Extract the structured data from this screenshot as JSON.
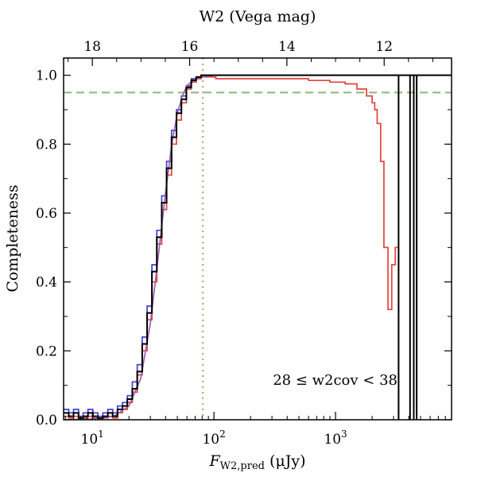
{
  "chart_data": {
    "type": "line",
    "drawstyle": "steps",
    "title": "",
    "xlabel": "F_{W2,pred} (μJy)",
    "xlabel_parts": {
      "main": "F",
      "sub": "W2,pred",
      "unit": " (μJy)"
    },
    "ylabel": "Completeness",
    "top_xlabel": "W2 (Vega mag)",
    "xscale": "log",
    "xlim": [
      5.8,
      9000
    ],
    "ylim": [
      0,
      1.05
    ],
    "x_ticks": [
      {
        "value": 10,
        "base": "10",
        "exp": "1"
      },
      {
        "value": 100,
        "base": "10",
        "exp": "2"
      },
      {
        "value": 1000,
        "base": "10",
        "exp": "3"
      }
    ],
    "y_ticks": [
      0.0,
      0.2,
      0.4,
      0.6,
      0.8,
      1.0
    ],
    "y_tick_labels": [
      "0.0",
      "0.2",
      "0.4",
      "0.6",
      "0.8",
      "1.0"
    ],
    "top_ticks": [
      {
        "mag": 18,
        "flux": 10.0,
        "label": "18"
      },
      {
        "mag": 16,
        "flux": 63.1,
        "label": "16"
      },
      {
        "mag": 14,
        "flux": 398.0,
        "label": "14"
      },
      {
        "mag": 12,
        "flux": 2512.0,
        "label": "12"
      }
    ],
    "annotation": "28 ≤ w2cov < 38",
    "reference_lines": [
      {
        "orientation": "horizontal",
        "y": 0.95,
        "color": "#8cb878",
        "style": "dashed"
      },
      {
        "orientation": "vertical",
        "x": 81,
        "color": "#bfae8c",
        "style": "dotted"
      }
    ],
    "series": [
      {
        "color": "#3f3fd8",
        "x": [
          5.8,
          6.4,
          7.0,
          7.7,
          8.4,
          9.2,
          10.1,
          11.1,
          12.2,
          13.4,
          14.7,
          16.1,
          17.7,
          19.4,
          21.3,
          23.4,
          25.7,
          28.2,
          30.9,
          33.9,
          37.2,
          40.8,
          44.8,
          49.2,
          54.0,
          59.3,
          65.1,
          71.4,
          78.4,
          86.0,
          94.4,
          103.6,
          150,
          300,
          600,
          1000,
          2000,
          3300
        ],
        "y": [
          0.03,
          0.02,
          0.03,
          0.01,
          0.02,
          0.03,
          0.02,
          0.01,
          0.02,
          0.03,
          0.02,
          0.04,
          0.05,
          0.07,
          0.11,
          0.16,
          0.24,
          0.33,
          0.45,
          0.55,
          0.65,
          0.75,
          0.84,
          0.9,
          0.94,
          0.97,
          0.99,
          0.995,
          1.0,
          1.0,
          1.0,
          1.0,
          1.0,
          1.0,
          1.0,
          1.0,
          1.0,
          1.0
        ]
      },
      {
        "color": "#e0443c",
        "x": [
          5.8,
          6.4,
          7.0,
          7.7,
          8.4,
          9.2,
          10.1,
          11.1,
          12.2,
          13.4,
          14.7,
          16.1,
          17.7,
          19.4,
          21.3,
          23.4,
          25.7,
          28.2,
          30.9,
          33.9,
          37.2,
          40.8,
          44.8,
          49.2,
          54.0,
          59.3,
          65.1,
          71.4,
          78.4,
          86.0,
          94.4,
          103.6,
          150,
          300,
          600,
          900,
          1200,
          1500,
          1800,
          2000,
          2100,
          2200,
          2350,
          2500,
          2700,
          2900,
          3100,
          3300
        ],
        "y": [
          0.01,
          0.005,
          0.01,
          0.0,
          0.005,
          0.01,
          0.005,
          0.0,
          0.005,
          0.01,
          0.005,
          0.02,
          0.03,
          0.05,
          0.08,
          0.13,
          0.2,
          0.29,
          0.4,
          0.51,
          0.61,
          0.71,
          0.8,
          0.87,
          0.92,
          0.96,
          0.98,
          0.99,
          0.995,
          0.995,
          0.995,
          0.99,
          0.99,
          0.99,
          0.985,
          0.98,
          0.975,
          0.96,
          0.94,
          0.92,
          0.9,
          0.86,
          0.75,
          0.5,
          0.32,
          0.45,
          0.5,
          0.0
        ]
      },
      {
        "color": "#9b5fb0",
        "x": [
          5.8,
          10,
          15,
          20,
          25,
          30,
          35,
          40,
          45,
          50,
          55,
          60,
          70,
          80,
          100,
          150,
          300,
          1000,
          3000,
          9000
        ],
        "y": [
          0.0,
          0.002,
          0.01,
          0.04,
          0.12,
          0.28,
          0.48,
          0.66,
          0.8,
          0.89,
          0.94,
          0.97,
          0.99,
          0.995,
          1.0,
          1.0,
          1.0,
          1.0,
          1.0,
          1.0
        ]
      },
      {
        "color": "#000000",
        "x": [
          5.8,
          6.4,
          7.0,
          7.7,
          8.4,
          9.2,
          10.1,
          11.1,
          12.2,
          13.4,
          14.7,
          16.1,
          17.7,
          19.4,
          21.3,
          23.4,
          25.7,
          28.2,
          30.9,
          33.9,
          37.2,
          40.8,
          44.8,
          49.2,
          54.0,
          59.3,
          65.1,
          71.4,
          78.4,
          86.0,
          94.4,
          103.6,
          150,
          300,
          600,
          1000,
          2000,
          3300
        ],
        "y": [
          0.02,
          0.01,
          0.02,
          0.005,
          0.01,
          0.02,
          0.01,
          0.005,
          0.01,
          0.02,
          0.01,
          0.03,
          0.04,
          0.06,
          0.09,
          0.14,
          0.22,
          0.31,
          0.43,
          0.53,
          0.63,
          0.73,
          0.82,
          0.89,
          0.93,
          0.965,
          0.985,
          0.995,
          1.0,
          1.0,
          1.0,
          1.0,
          1.0,
          1.0,
          1.0,
          1.0,
          1.0,
          1.0
        ],
        "spikes_x": [
          3300,
          4100,
          4400,
          4650
        ]
      }
    ]
  }
}
